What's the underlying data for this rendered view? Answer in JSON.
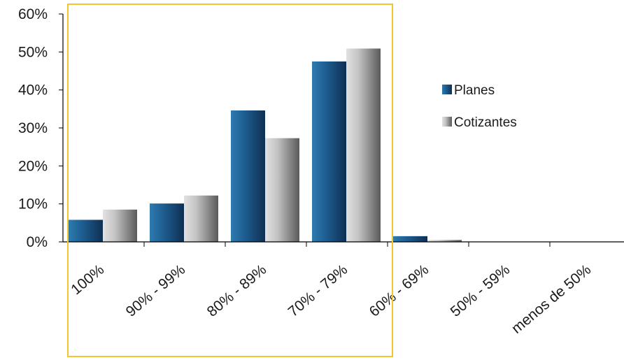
{
  "chart_data": {
    "type": "bar",
    "categories": [
      "100%",
      "90% - 99%",
      "80% - 89%",
      "70% - 79%",
      "60% - 69%",
      "50% - 59%",
      "menos de 50%"
    ],
    "series": [
      {
        "name": "Planes",
        "values": [
          5.8,
          10.1,
          34.6,
          47.5,
          1.5,
          0.0,
          0.0
        ]
      },
      {
        "name": "Cotizantes",
        "values": [
          8.5,
          12.2,
          27.3,
          50.9,
          0.5,
          0.0,
          0.0
        ]
      }
    ],
    "y_ticks": [
      "0%",
      "10%",
      "20%",
      "30%",
      "40%",
      "50%",
      "60%"
    ],
    "ylim": [
      0,
      60
    ],
    "legend_position": "right",
    "grid": false,
    "highlight_box": {
      "from_category": "100%",
      "to_category": "70% - 79%",
      "color": "#f2c72e"
    },
    "colors": {
      "Planes": "#1a4f7e",
      "Cotizantes": "#b4b4b4",
      "axis": "#000000"
    }
  }
}
